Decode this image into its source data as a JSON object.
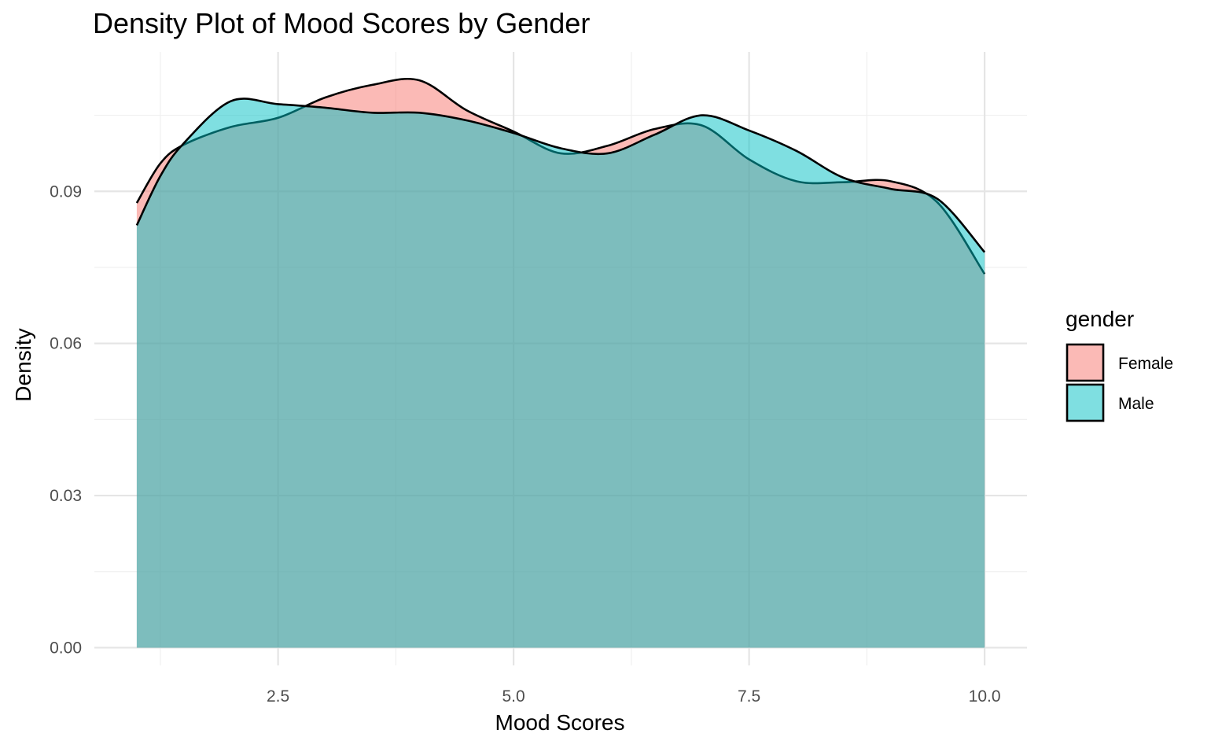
{
  "chart_data": {
    "type": "area",
    "title": "Density Plot of Mood Scores by Gender",
    "xlabel": "Mood Scores",
    "ylabel": "Density",
    "xlim": [
      0.55,
      10.45
    ],
    "ylim": [
      -0.0035,
      0.1175
    ],
    "x_ticks": [
      2.5,
      5.0,
      7.5,
      10.0
    ],
    "x_tick_labels": [
      "2.5",
      "5.0",
      "7.5",
      "10.0"
    ],
    "x_minor_ticks": [
      1.25,
      3.75,
      6.25,
      8.75
    ],
    "y_ticks": [
      0.0,
      0.03,
      0.06,
      0.09
    ],
    "y_tick_labels": [
      "0.00",
      "0.03",
      "0.06",
      "0.09"
    ],
    "y_minor_ticks": [
      0.015,
      0.045,
      0.075,
      0.105
    ],
    "grid": true,
    "legend": {
      "title": "gender",
      "position": "right"
    },
    "series": [
      {
        "name": "Female",
        "color": "#F8766D",
        "x": [
          1.0,
          1.25,
          1.5,
          2.0,
          2.5,
          3.0,
          3.5,
          4.0,
          4.5,
          5.0,
          5.5,
          6.0,
          6.5,
          7.0,
          7.5,
          8.0,
          8.5,
          9.0,
          9.5,
          10.0
        ],
        "y": [
          0.0877,
          0.0955,
          0.0992,
          0.1027,
          0.1045,
          0.1085,
          0.111,
          0.1119,
          0.106,
          0.1018,
          0.0975,
          0.099,
          0.1023,
          0.103,
          0.0963,
          0.092,
          0.0918,
          0.092,
          0.0878,
          0.0737
        ]
      },
      {
        "name": "Male",
        "color": "#00BFC4",
        "x": [
          1.0,
          1.25,
          1.5,
          2.0,
          2.5,
          3.0,
          3.5,
          4.0,
          4.5,
          5.0,
          5.5,
          6.0,
          6.5,
          7.0,
          7.5,
          8.0,
          8.5,
          9.0,
          9.5,
          10.0
        ],
        "y": [
          0.0833,
          0.093,
          0.0995,
          0.1078,
          0.1072,
          0.1065,
          0.1055,
          0.1055,
          0.104,
          0.1015,
          0.0985,
          0.0975,
          0.1012,
          0.105,
          0.102,
          0.098,
          0.0927,
          0.0905,
          0.0885,
          0.078
        ]
      }
    ]
  }
}
